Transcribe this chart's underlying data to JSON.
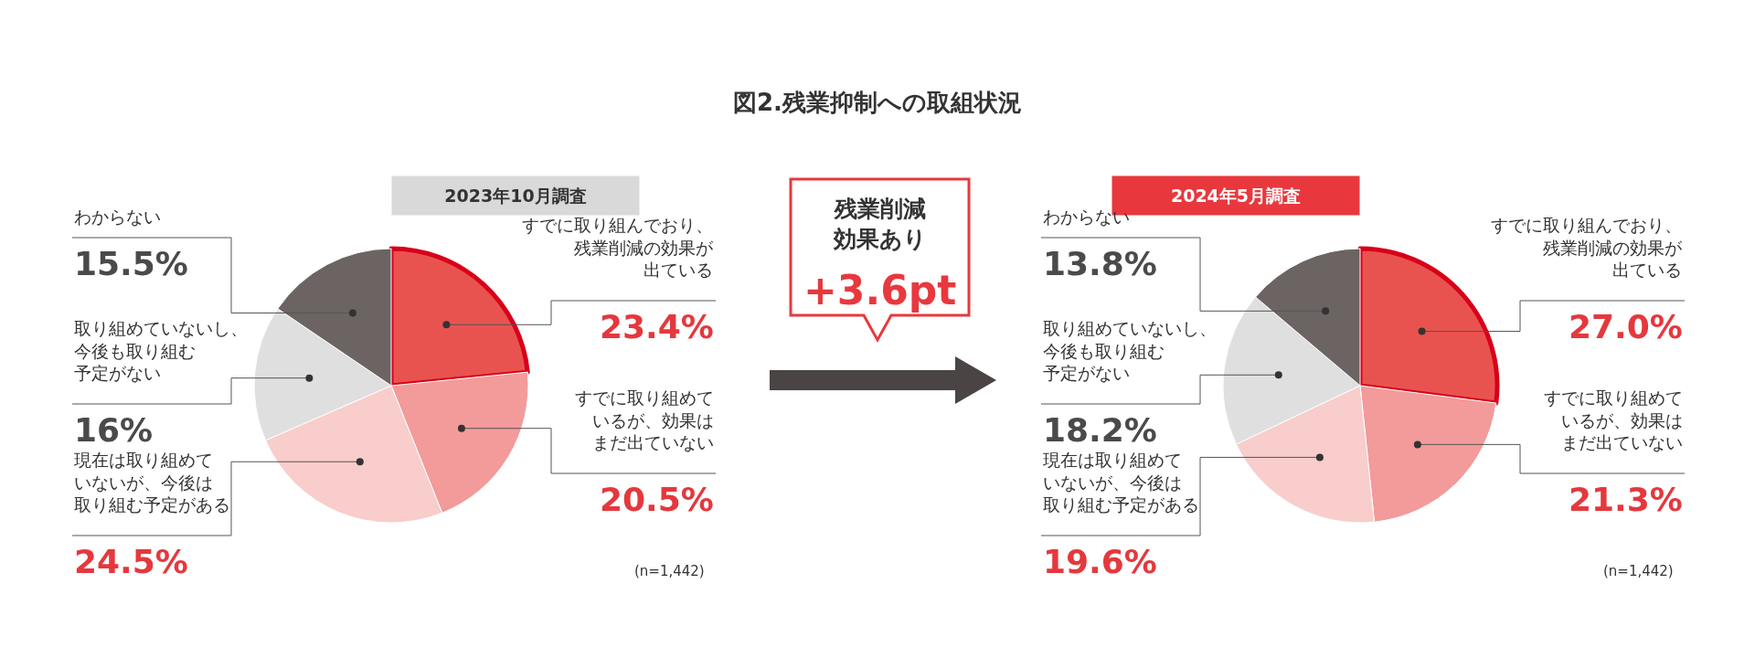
{
  "chart_data": [
    {
      "type": "pie",
      "title": "図2.残業抑制への取組状況",
      "subtitle": "2023年10月調査",
      "categories": [
        "すでに取り組んでおり、残業削減の効果が出ている",
        "すでに取り組めているが、効果はまだ出ていない",
        "現在は取り組めていないが、今後は取り組む予定がある",
        "取り組めていないし、今後も取り組む予定がない",
        "わからない"
      ],
      "values": [
        23.4,
        20.5,
        24.5,
        16,
        15.5
      ],
      "colors": [
        "#e9534f",
        "#f29b9a",
        "#f8cdcc",
        "#e0dfdf",
        "#6b6462"
      ],
      "value_labels": [
        "23.4%",
        "20.5%",
        "24.5%",
        "16%",
        "15.5%"
      ],
      "annotations": [
        "(n=1,442)"
      ]
    },
    {
      "type": "other",
      "annotations": [
        "残業削減効果あり",
        "+3.6pt"
      ]
    },
    {
      "type": "pie",
      "subtitle": "2024年5月調査",
      "categories": [
        "すでに取り組んでおり、残業削減の効果が出ている",
        "すでに取り組めているが、効果はまだ出ていない",
        "現在は取り組めていないが、今後は取り組む予定がある",
        "取り組めていないし、今後も取り組む予定がない",
        "わからない"
      ],
      "values": [
        27.0,
        21.3,
        19.6,
        18.2,
        13.8
      ],
      "colors": [
        "#e9534f",
        "#f29b9a",
        "#f8cdcc",
        "#e0dfdf",
        "#6b6462"
      ],
      "value_labels": [
        "27.0%",
        "21.3%",
        "19.6%",
        "18.2%",
        "13.8%"
      ],
      "annotations": [
        "(n=1,442)"
      ]
    }
  ]
}
